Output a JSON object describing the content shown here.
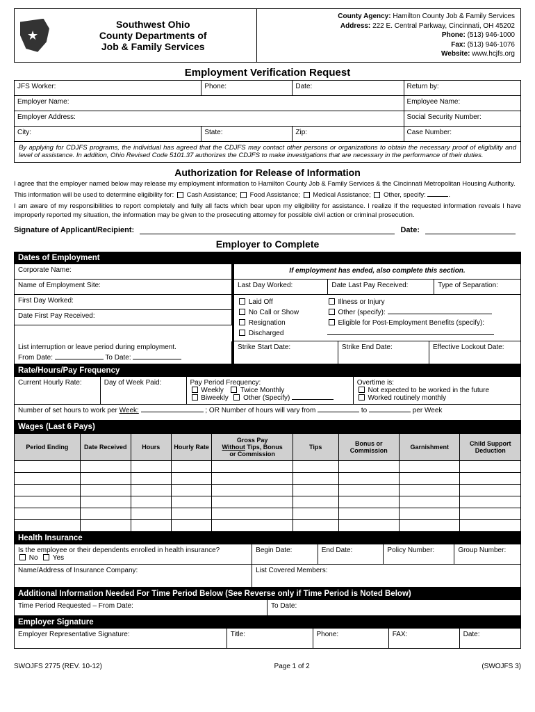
{
  "header": {
    "org_line1": "Southwest Ohio",
    "org_line2": "County Departments of",
    "org_line3": "Job & Family Services",
    "agency_label": "County Agency:",
    "agency_value": "Hamilton County Job & Family Services",
    "address_label": "Address:",
    "address_value": "222 E. Central Parkway, Cincinnati, OH 45202",
    "phone_label": "Phone:",
    "phone_value": "(513) 946-1000",
    "fax_label": "Fax:",
    "fax_value": "(513) 946-1076",
    "website_label": "Website:",
    "website_value": "www.hcjfs.org"
  },
  "title": "Employment Verification Request",
  "fields": {
    "jfs_worker": "JFS Worker:",
    "phone": "Phone:",
    "date": "Date:",
    "return_by": "Return by:",
    "employer_name": "Employer Name:",
    "employee_name": "Employee Name:",
    "employer_address": "Employer Address:",
    "ssn": "Social Security Number:",
    "city": "City:",
    "state": "State:",
    "zip": "Zip:",
    "case_number": "Case Number:"
  },
  "disclaimer": "By applying for CDJFS programs, the individual has agreed that the CDJFS may contact other persons or organizations to obtain the necessary proof of eligibility and level of assistance. In addition, Ohio Revised Code 5101.37 authorizes the CDJFS to make investigations that are necessary in the performance of their duties.",
  "auth": {
    "title": "Authorization for Release of Information",
    "p1": "I agree that the employer named below may release my employment information to Hamilton County Job & Family Services & the Cincinnati Metropolitan Housing Authority.",
    "p2_pre": "This information will be used to determine eligibility for:",
    "opt1": "Cash Assistance;",
    "opt2": "Food Assistance;",
    "opt3": "Medical Assistance;",
    "opt4": "Other, specify:",
    "p3": "I am aware of my responsibilities to report completely and fully all facts which bear upon my eligibility for assistance. I realize if the requested information reveals I have improperly reported my situation, the information may be given to the prosecuting attorney for possible civil action or criminal prosecution.",
    "sig_label": "Signature of Applicant/Recipient:",
    "date_label": "Date:"
  },
  "employer_title": "Employer to Complete",
  "dates": {
    "bar": "Dates of Employment",
    "corporate_name": "Corporate Name:",
    "ended_header": "If employment has ended, also complete this section.",
    "site_name": "Name of Employment Site:",
    "last_day": "Last Day Worked:",
    "date_last_pay": "Date Last Pay Received:",
    "type_sep": "Type of Separation:",
    "first_day": "First Day Worked:",
    "laid_off": "Laid Off",
    "illness": "Illness or Injury",
    "no_call": "No Call or Show",
    "other_spec": "Other (specify):",
    "resignation": "Resignation",
    "eligible_post": "Eligible for Post-Employment Benefits (specify):",
    "discharged": "Discharged",
    "date_first_pay": "Date First Pay Received:",
    "interruption": "List interruption or leave period during employment.",
    "from_date": "From Date:",
    "to_date": "To Date:",
    "strike_start": "Strike Start Date:",
    "strike_end": "Strike End Date:",
    "lockout": "Effective Lockout Date:"
  },
  "rate": {
    "bar": "Rate/Hours/Pay Frequency",
    "hourly_rate": "Current Hourly Rate:",
    "day_paid": "Day of Week Paid:",
    "pay_freq": "Pay Period Frequency:",
    "weekly": "Weekly",
    "twice": "Twice Monthly",
    "biweekly": "Biweekly",
    "other": "Other (Specify)",
    "overtime": "Overtime is:",
    "not_expected": "Not expected to be worked in the future",
    "routinely": "Worked routinely monthly",
    "hours_line_pre": "Number of set hours to work per",
    "hours_line_week": "Week:",
    "hours_line_or": "; OR Number of hours will vary from",
    "hours_line_to": "to",
    "hours_line_per": "per Week"
  },
  "wages": {
    "bar": "Wages (Last 6 Pays)",
    "cols": [
      "Period Ending",
      "Date Received",
      "Hours",
      "Hourly Rate",
      "Gross Pay Without Tips, Bonus or Commission",
      "Tips",
      "Bonus or Commission",
      "Garnishment",
      "Child Support Deduction"
    ]
  },
  "health": {
    "bar": "Health Insurance",
    "q": "Is the employee or their dependents enrolled in health insurance?",
    "no": "No",
    "yes": "Yes",
    "begin": "Begin Date:",
    "end": "End Date:",
    "policy": "Policy Number:",
    "group": "Group Number:",
    "name_addr": "Name/Address of Insurance Company:",
    "covered": "List Covered Members:"
  },
  "addl": {
    "bar": "Additional Information Needed For Time Period Below (See Reverse only if Time Period is Noted Below)",
    "from": "Time Period Requested – From Date:",
    "to": "To Date:"
  },
  "empsig": {
    "bar": "Employer Signature",
    "rep": "Employer Representative Signature:",
    "title": "Title:",
    "phone": "Phone:",
    "fax": "FAX:",
    "date": "Date:"
  },
  "footer": {
    "left": "SWOJFS 2775 (REV. 10-12)",
    "center": "Page 1 of 2",
    "right": "(SWOJFS 3)"
  }
}
